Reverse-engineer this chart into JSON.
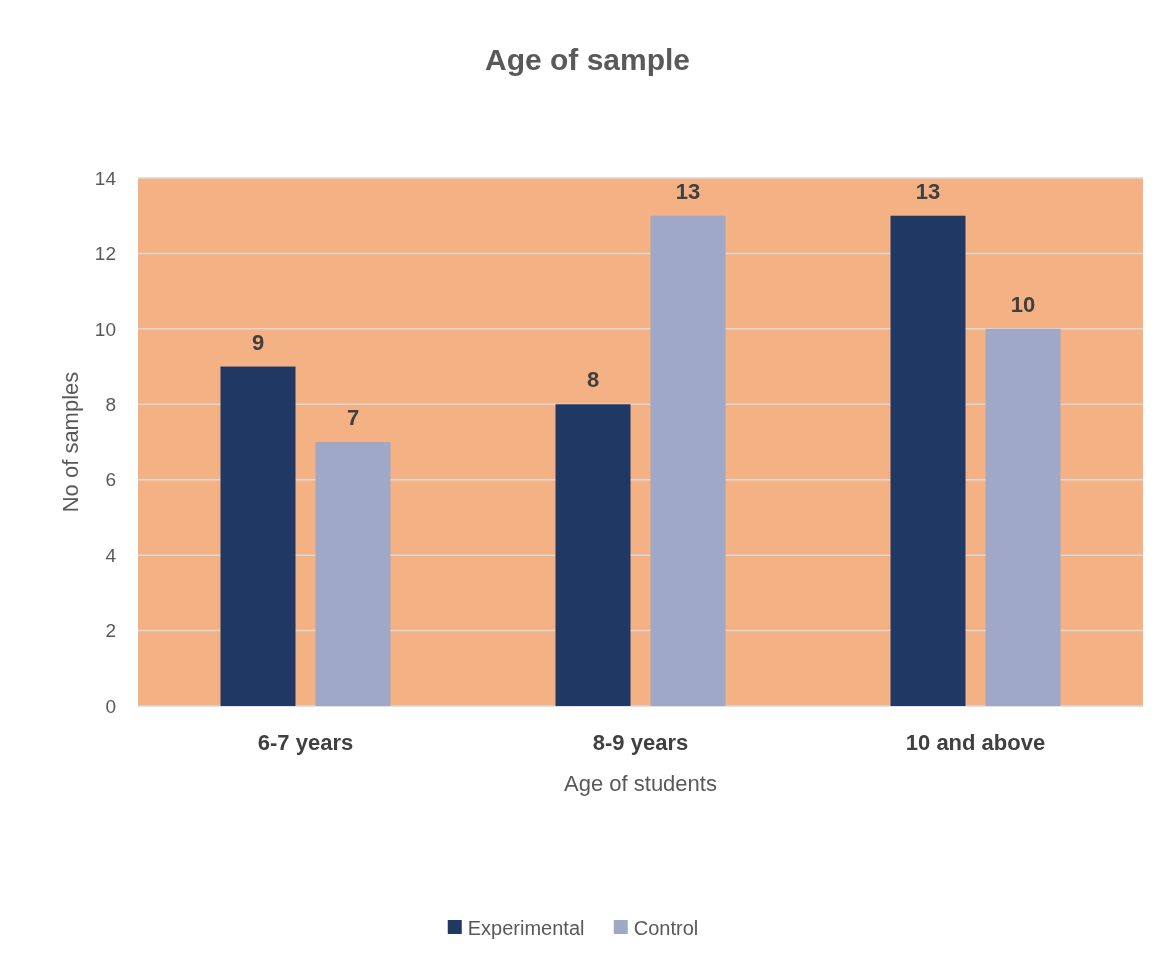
{
  "chart_data": {
    "type": "bar",
    "title": "Age of sample",
    "xlabel": "Age of students",
    "ylabel": "No of samples",
    "categories": [
      "6-7 years",
      "8-9 years",
      "10 and above"
    ],
    "series": [
      {
        "name": "Experimental",
        "color": "#203864",
        "values": [
          9,
          8,
          13
        ]
      },
      {
        "name": "Control",
        "color": "#9fa8c6",
        "values": [
          7,
          13,
          10
        ]
      }
    ],
    "ylim": [
      0,
      14
    ],
    "yticks": [
      0,
      2,
      4,
      6,
      8,
      10,
      12,
      14
    ],
    "grid": "y",
    "legend": "bottom",
    "data_labels": true
  }
}
